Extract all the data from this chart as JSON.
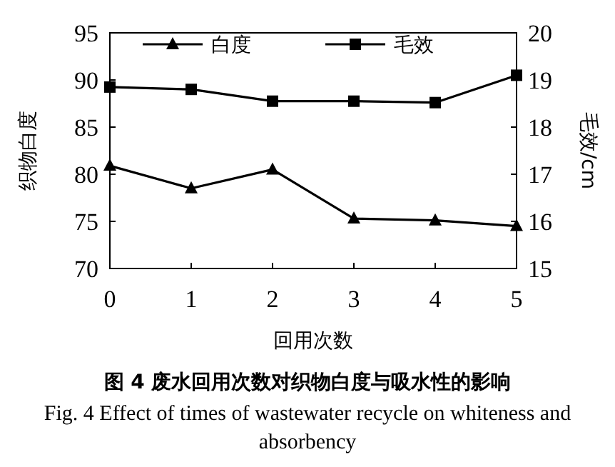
{
  "chart_data": {
    "type": "line",
    "title": "图 4  废水回用次数对织物白度与吸水性的影响",
    "subtitle": "Fig. 4  Effect of times of wastewater recycle on whiteness and absorbency",
    "xlabel": "回用次数",
    "ylabel": "织物白度",
    "y2label": "毛效/cm",
    "x": [
      0,
      1,
      2,
      3,
      4,
      5
    ],
    "xlim": [
      0,
      5
    ],
    "xticks": [
      0,
      1,
      2,
      3,
      4,
      5
    ],
    "ylim": [
      70,
      95
    ],
    "yticks": [
      70,
      75,
      80,
      85,
      90,
      95
    ],
    "y2lim": [
      15,
      20
    ],
    "y2ticks": [
      15,
      16,
      17,
      18,
      19,
      20
    ],
    "series": [
      {
        "name": "白度",
        "color": "#000000",
        "marker": "triangle",
        "axis": "y",
        "values": [
          80.9,
          78.5,
          80.5,
          75.3,
          75.1,
          74.5
        ]
      },
      {
        "name": "毛效",
        "color": "#000000",
        "marker": "square",
        "axis": "y2",
        "values": [
          18.85,
          18.8,
          18.55,
          18.55,
          18.52,
          19.1
        ]
      }
    ],
    "legend": "top",
    "grid": false,
    "line_style": "solid"
  }
}
